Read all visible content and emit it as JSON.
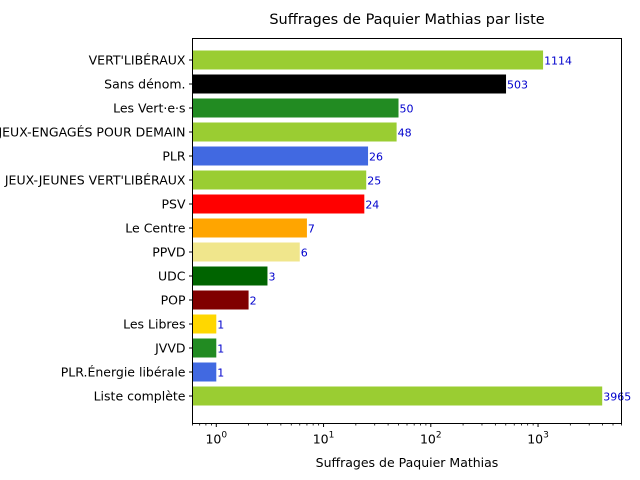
{
  "chart_data": {
    "type": "bar",
    "orientation": "horizontal",
    "title": "Suffrages de Paquier Mathias par liste",
    "xlabel": "Suffrages de Paquier Mathias",
    "ylabel": "",
    "xscale": "log",
    "xlim": [
      0.6,
      6000
    ],
    "x_ticks": [
      {
        "value": 1,
        "base": "10",
        "exp": "0"
      },
      {
        "value": 10,
        "base": "10",
        "exp": "1"
      },
      {
        "value": 100,
        "base": "10",
        "exp": "2"
      },
      {
        "value": 1000,
        "base": "10",
        "exp": "3"
      }
    ],
    "grid": false,
    "bars": [
      {
        "label": "VERT'LIBÉRAUX",
        "value": 1114,
        "color": "#9acd32"
      },
      {
        "label": "Sans dénom.",
        "value": 503,
        "color": "#000000"
      },
      {
        "label": "Les Vert·e·s",
        "value": 50,
        "color": "#228b22"
      },
      {
        "label": "JEUX-ENGAGÉS POUR DEMAIN",
        "value": 48,
        "color": "#9acd32"
      },
      {
        "label": "PLR",
        "value": 26,
        "color": "#4169e1"
      },
      {
        "label": "JEUX-JEUNES VERT'LIBÉRAUX",
        "value": 25,
        "color": "#9acd32"
      },
      {
        "label": "PSV",
        "value": 24,
        "color": "#ff0000"
      },
      {
        "label": "Le Centre",
        "value": 7,
        "color": "#ffa500"
      },
      {
        "label": "PPVD",
        "value": 6,
        "color": "#f0e68c"
      },
      {
        "label": "UDC",
        "value": 3,
        "color": "#006400"
      },
      {
        "label": "POP",
        "value": 2,
        "color": "#800000"
      },
      {
        "label": "Les Libres",
        "value": 1,
        "color": "#ffd700"
      },
      {
        "label": "JVVD",
        "value": 1,
        "color": "#228b22"
      },
      {
        "label": "PLR.Énergie libérale",
        "value": 1,
        "color": "#4169e1"
      },
      {
        "label": "Liste complète",
        "value": 3965,
        "color": "#9acd32"
      }
    ],
    "value_label_color": "#0000cd"
  }
}
